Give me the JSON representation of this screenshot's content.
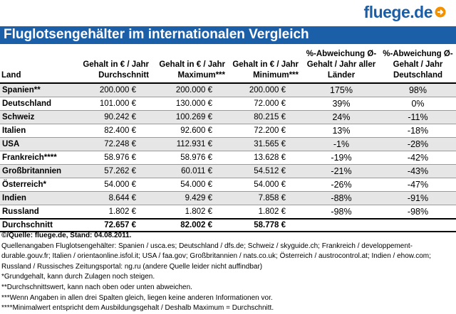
{
  "header": {
    "logo": "fluege.de",
    "title": "Fluglotsengehälter im internationalen Vergleich"
  },
  "table": {
    "columns": [
      "Land",
      "Gehalt in € / Jahr Durchschnitt",
      "Gehalt in € / Jahr Maximum***",
      "Gehalt in € / Jahr Minimum***",
      "%-Abweichung Ø-Gehalt / Jahr aller Länder",
      "%-Abweichung Ø-Gehalt / Jahr Deutschland"
    ],
    "rows": [
      [
        "Spanien**",
        "200.000 €",
        "200.000 €",
        "200.000 €",
        "175%",
        "98%"
      ],
      [
        "Deutschland",
        "101.000 €",
        "130.000 €",
        "72.000 €",
        "39%",
        "0%"
      ],
      [
        "Schweiz",
        "90.242 €",
        "100.269 €",
        "80.215 €",
        "24%",
        "-11%"
      ],
      [
        "Italien",
        "82.400 €",
        "92.600 €",
        "72.200 €",
        "13%",
        "-18%"
      ],
      [
        "USA",
        "72.248 €",
        "112.931 €",
        "31.565 €",
        "-1%",
        "-28%"
      ],
      [
        "Frankreich****",
        "58.976 €",
        "58.976 €",
        "13.628 €",
        "-19%",
        "-42%"
      ],
      [
        "Großbritannien",
        "57.262 €",
        "60.011 €",
        "54.512 €",
        "-21%",
        "-43%"
      ],
      [
        "Österreich*",
        "54.000 €",
        "54.000 €",
        "54.000 €",
        "-26%",
        "-47%"
      ],
      [
        "Indien",
        "8.644 €",
        "9.429 €",
        "7.858 €",
        "-88%",
        "-91%"
      ],
      [
        "Russland",
        "1.802 €",
        "1.802 €",
        "1.802 €",
        "-98%",
        "-98%"
      ]
    ],
    "total": [
      "Durchschnitt",
      "72.657 €",
      "82.002 €",
      "58.778 €"
    ]
  },
  "footer": {
    "source": "©/Quelle: fluege.de, Stand: 04.08.2011.",
    "sources_detail": "Quellenangaben Fluglotsengehälter: Spanien / usca.es; Deutschland / dfs.de; Schweiz / skyguide.ch; Frankreich / developpement-durable.gouv.fr; Italien / orientaonline.isfol.it; USA / faa.gov; Großbritannien / nats.co.uk; Österreich / austrocontrol.at; Indien / ehow.com; Russland / Russisches Zeitungsportal: ng.ru (andere Quelle leider nicht auffindbar)",
    "notes": [
      "*Grundgehalt, kann durch Zulagen noch steigen.",
      "**Durchschnittswert, kann nach oben oder unten abweichen.",
      "***Wenn Angaben in allen drei Spalten gleich, liegen keine anderen Informationen vor.",
      "****Minimalwert entspricht dem Ausbildungsgehalt / Deshalb Maximum = Durchschnitt."
    ]
  }
}
